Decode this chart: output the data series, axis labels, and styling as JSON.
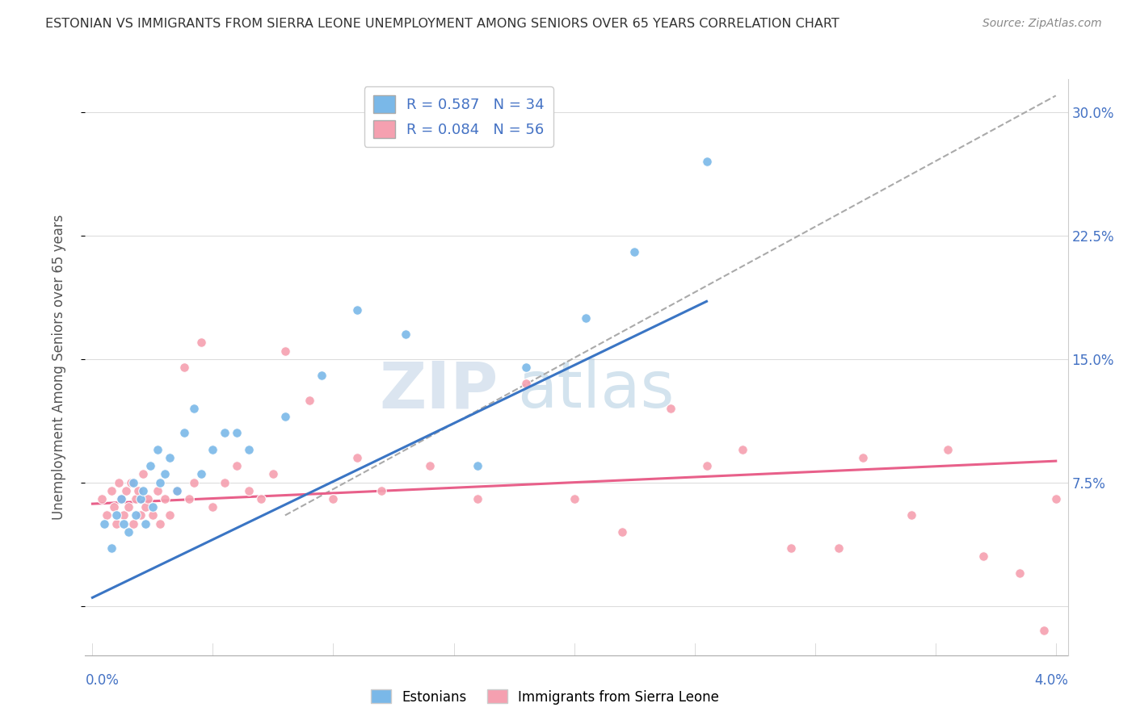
{
  "title": "ESTONIAN VS IMMIGRANTS FROM SIERRA LEONE UNEMPLOYMENT AMONG SENIORS OVER 65 YEARS CORRELATION CHART",
  "source": "Source: ZipAtlas.com",
  "ylabel": "Unemployment Among Seniors over 65 years",
  "xlim": [
    0.0,
    4.0
  ],
  "ylim": [
    -3.0,
    32.0
  ],
  "estonians_color": "#7ab8e8",
  "immigrants_color": "#f5a0b0",
  "estonians_R": 0.587,
  "estonians_N": 34,
  "immigrants_R": 0.084,
  "immigrants_N": 56,
  "blue_trendline_x": [
    0.0,
    2.55
  ],
  "blue_trendline_y": [
    0.5,
    18.5
  ],
  "pink_trendline_x": [
    0.0,
    4.0
  ],
  "pink_trendline_y": [
    6.2,
    8.8
  ],
  "dashed_line_x": [
    0.8,
    4.0
  ],
  "dashed_line_y": [
    5.5,
    31.0
  ],
  "watermark_zip": "ZIP",
  "watermark_atlas": "atlas",
  "estonians_x": [
    0.05,
    0.08,
    0.1,
    0.12,
    0.13,
    0.15,
    0.17,
    0.18,
    0.2,
    0.21,
    0.22,
    0.24,
    0.25,
    0.27,
    0.28,
    0.3,
    0.32,
    0.35,
    0.38,
    0.42,
    0.45,
    0.5,
    0.55,
    0.6,
    0.65,
    0.8,
    0.95,
    1.1,
    1.3,
    1.6,
    1.8,
    2.05,
    2.25,
    2.55
  ],
  "estonians_y": [
    5.0,
    3.5,
    5.5,
    6.5,
    5.0,
    4.5,
    7.5,
    5.5,
    6.5,
    7.0,
    5.0,
    8.5,
    6.0,
    9.5,
    7.5,
    8.0,
    9.0,
    7.0,
    10.5,
    12.0,
    8.0,
    9.5,
    10.5,
    10.5,
    9.5,
    11.5,
    14.0,
    18.0,
    16.5,
    8.5,
    14.5,
    17.5,
    21.5,
    27.0
  ],
  "immigrants_x": [
    0.04,
    0.06,
    0.08,
    0.09,
    0.1,
    0.11,
    0.12,
    0.13,
    0.14,
    0.15,
    0.16,
    0.17,
    0.18,
    0.19,
    0.2,
    0.21,
    0.22,
    0.23,
    0.25,
    0.27,
    0.28,
    0.3,
    0.32,
    0.35,
    0.38,
    0.4,
    0.42,
    0.45,
    0.5,
    0.55,
    0.6,
    0.65,
    0.7,
    0.75,
    0.8,
    0.9,
    1.0,
    1.1,
    1.2,
    1.4,
    1.6,
    1.8,
    2.0,
    2.2,
    2.4,
    2.55,
    2.7,
    2.9,
    3.1,
    3.2,
    3.4,
    3.55,
    3.7,
    3.85,
    3.95,
    4.0
  ],
  "immigrants_y": [
    6.5,
    5.5,
    7.0,
    6.0,
    5.0,
    7.5,
    6.5,
    5.5,
    7.0,
    6.0,
    7.5,
    5.0,
    6.5,
    7.0,
    5.5,
    8.0,
    6.0,
    6.5,
    5.5,
    7.0,
    5.0,
    6.5,
    5.5,
    7.0,
    14.5,
    6.5,
    7.5,
    16.0,
    6.0,
    7.5,
    8.5,
    7.0,
    6.5,
    8.0,
    15.5,
    12.5,
    6.5,
    9.0,
    7.0,
    8.5,
    6.5,
    13.5,
    6.5,
    4.5,
    12.0,
    8.5,
    9.5,
    3.5,
    3.5,
    9.0,
    5.5,
    9.5,
    3.0,
    2.0,
    -1.5,
    6.5
  ]
}
